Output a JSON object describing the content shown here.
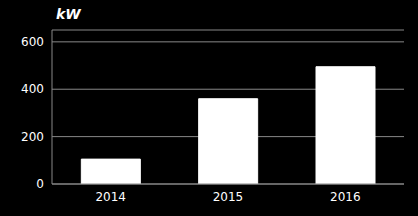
{
  "chart_data": {
    "type": "bar",
    "ylabel": "kW",
    "categories": [
      "2014",
      "2015",
      "2016"
    ],
    "values": [
      105,
      360,
      495
    ],
    "color": "#ffffff",
    "ylim": [
      0,
      650
    ],
    "yticks": [
      0,
      200,
      400,
      600
    ],
    "grid": true
  }
}
